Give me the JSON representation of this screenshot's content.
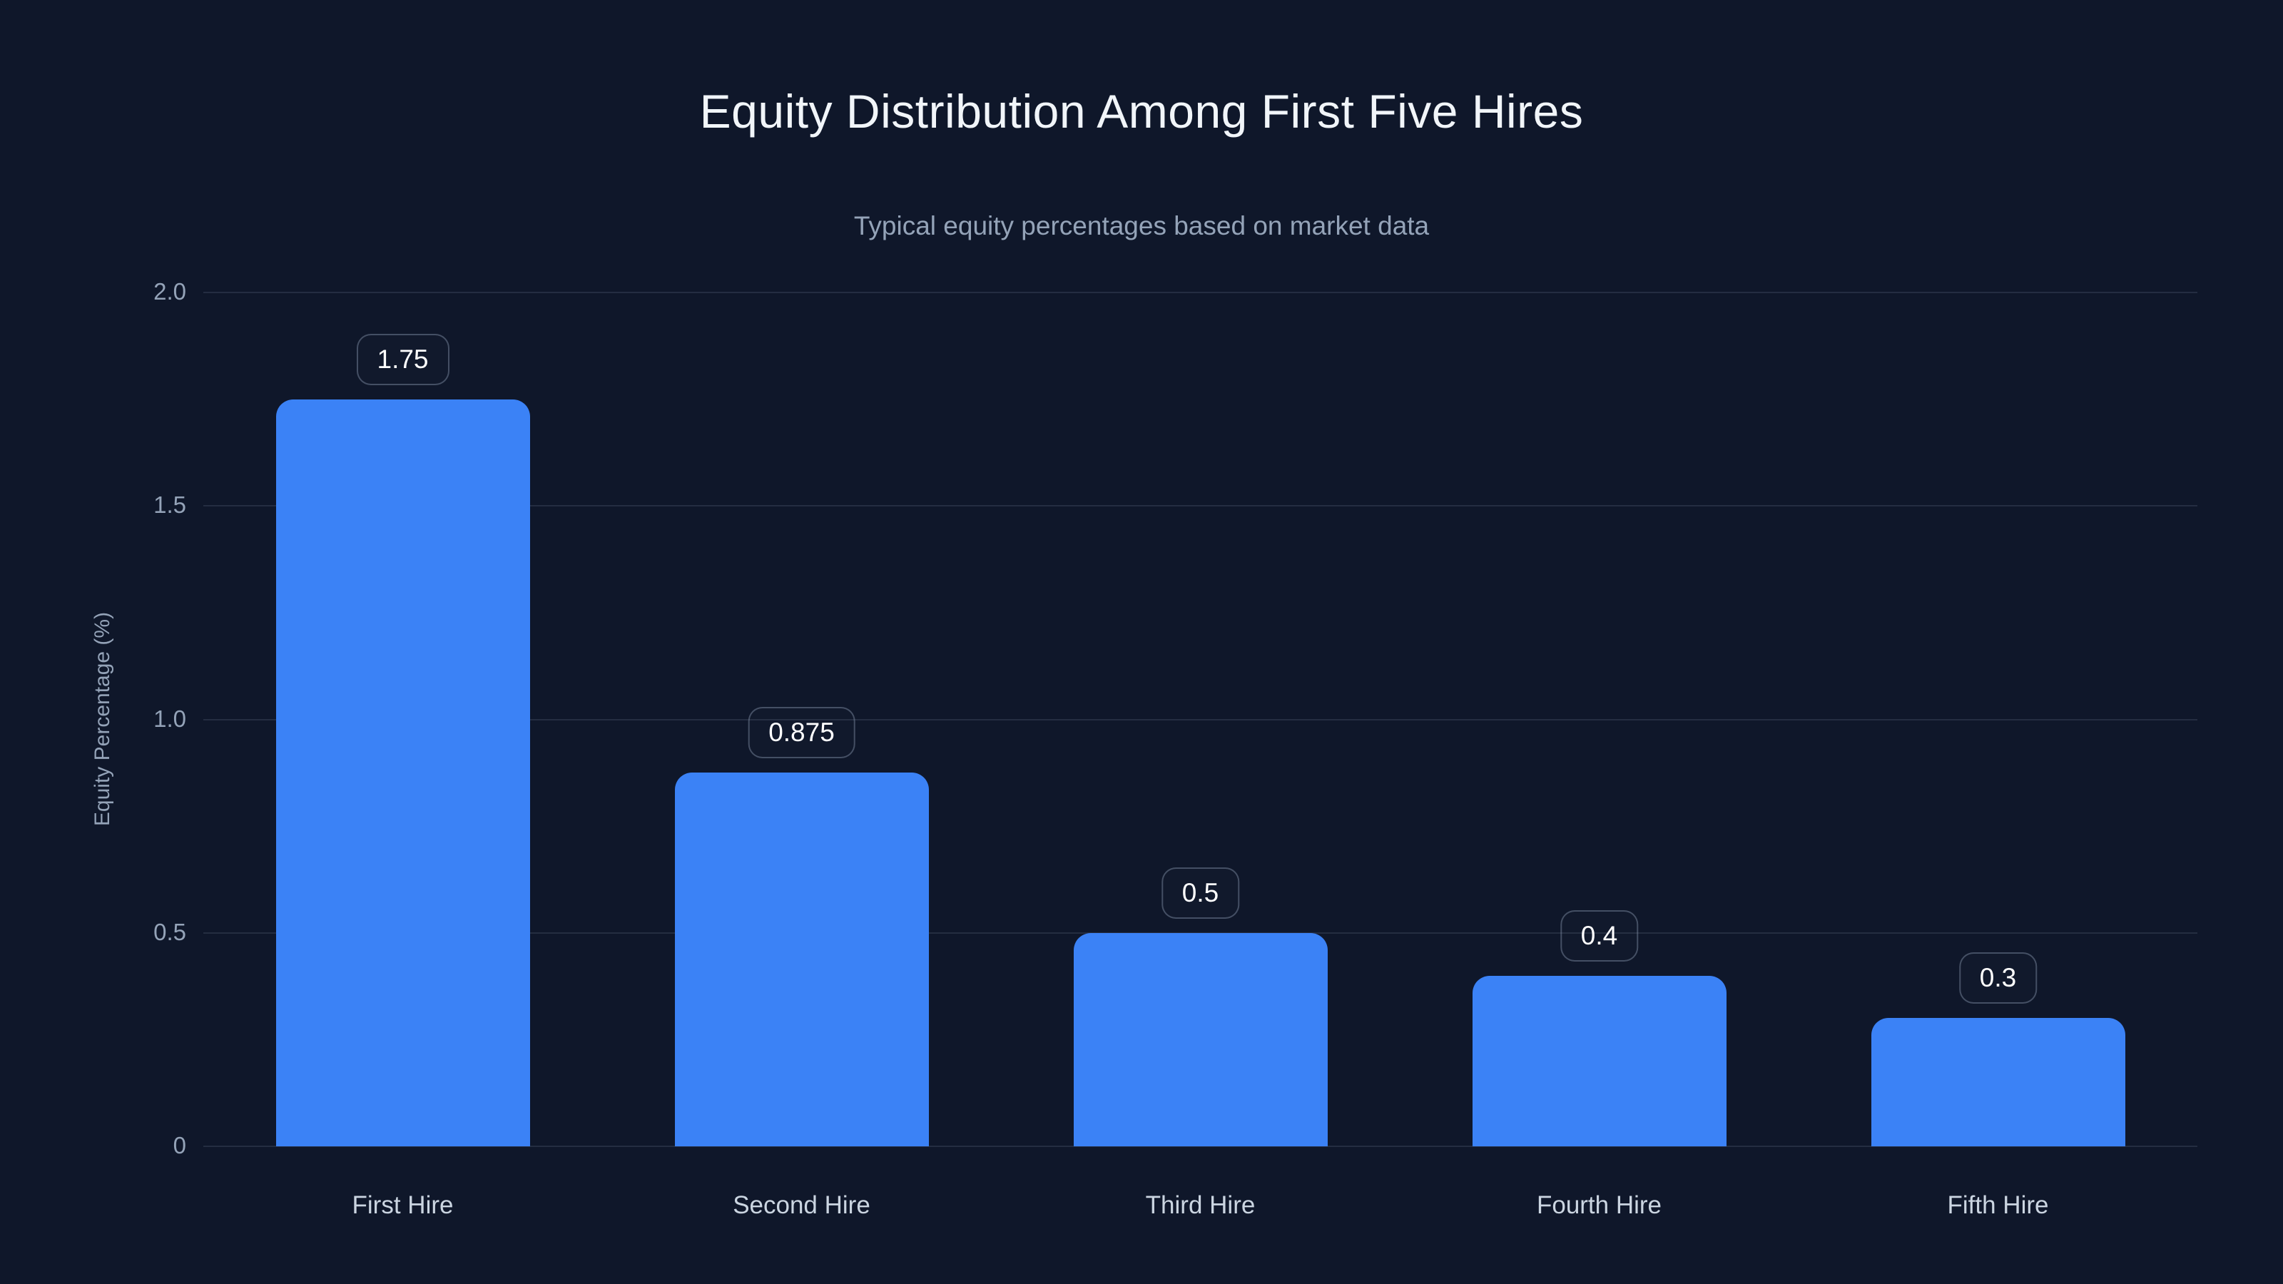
{
  "chart_data": {
    "type": "bar",
    "title": "Equity Distribution Among First Five Hires",
    "subtitle": "Typical equity percentages based on market data",
    "categories": [
      "First Hire",
      "Second Hire",
      "Third Hire",
      "Fourth Hire",
      "Fifth Hire"
    ],
    "values": [
      1.75,
      0.875,
      0.5,
      0.4,
      0.3
    ],
    "value_labels": [
      "1.75",
      "0.875",
      "0.5",
      "0.4",
      "0.3"
    ],
    "xlabel": "",
    "ylabel": "Equity Percentage (%)",
    "ylim": [
      0,
      2.0
    ],
    "yticks": [
      {
        "value": 2.0,
        "label": "2.0"
      },
      {
        "value": 1.5,
        "label": "1.5"
      },
      {
        "value": 1.0,
        "label": "1.0"
      },
      {
        "value": 0.5,
        "label": "0.5"
      },
      {
        "value": 0,
        "label": "0"
      }
    ],
    "grid": "horizontal",
    "legend": "none",
    "colors": {
      "background": "#0f172a",
      "bar": "#3b82f6",
      "gridline": "rgba(148,163,184,0.16)",
      "title_text": "#f1f5f9",
      "subtitle_text": "#94a3b8",
      "tick_text": "#94a3b8",
      "category_text": "#cbd5e1",
      "value_label_text": "#ffffff",
      "value_label_border": "rgba(148,163,184,0.4)"
    }
  }
}
